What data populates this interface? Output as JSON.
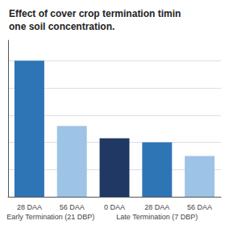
{
  "chart_data": {
    "type": "bar",
    "title": "Effect of cover crop termination timin\none soil concentration.",
    "groups": [
      {
        "label": "Early Termination (21 DBP)",
        "categories": [
          "28 DAA",
          "56 DAA"
        ],
        "values": [
          100,
          52
        ],
        "colors": [
          "#2E75B6",
          "#9DC3E6"
        ]
      },
      {
        "label": "Late Termination (7 DBP)",
        "categories": [
          "0 DAA",
          "28 DAA",
          "56 DAA"
        ],
        "values": [
          43,
          40,
          30
        ],
        "colors": [
          "#1F3864",
          "#2E75B6",
          "#9DC3E6"
        ]
      }
    ],
    "ylim": [
      0,
      115
    ],
    "yticks": [
      20,
      40,
      60,
      80,
      100
    ],
    "grid": true,
    "tick_labels": "x"
  }
}
